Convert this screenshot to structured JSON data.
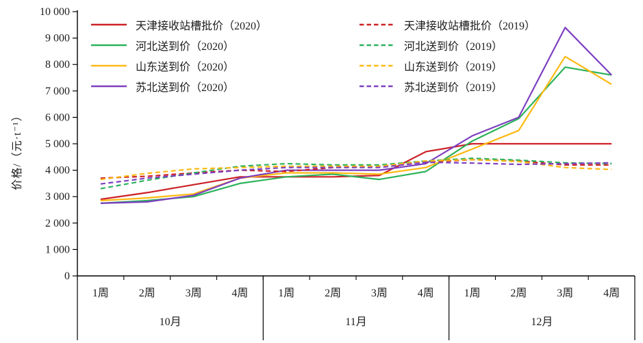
{
  "chart_data": {
    "type": "line",
    "title": "",
    "ylabel": "价格/（元·t⁻¹）",
    "ylim": [
      0,
      10000
    ],
    "ytick_step": 1000,
    "ytick_labels": [
      "0",
      "1 000",
      "2 000",
      "3 000",
      "4 000",
      "5 000",
      "6 000",
      "7 000",
      "8 000",
      "9 000",
      "10 000"
    ],
    "months": [
      "10月",
      "11月",
      "12月"
    ],
    "week_labels": [
      "1周",
      "2周",
      "3周",
      "4周"
    ],
    "legend_position": "top-left-two-columns",
    "grid": false,
    "series": [
      {
        "label": "天津接收站槽批价（2020）",
        "year": "2020",
        "color": "#cc2127",
        "dash": false,
        "values": [
          2900,
          3150,
          3450,
          3750,
          3750,
          3750,
          3800,
          4700,
          5000,
          5000,
          5000,
          5000
        ]
      },
      {
        "label": "河北送到价（2020）",
        "year": "2020",
        "color": "#2cb15a",
        "dash": false,
        "values": [
          2750,
          2850,
          3000,
          3500,
          3750,
          3850,
          3650,
          3950,
          5100,
          5950,
          7900,
          7600
        ]
      },
      {
        "label": "山东送到价（2020）",
        "year": "2020",
        "color": "#fdb913",
        "dash": false,
        "values": [
          2850,
          2950,
          3100,
          3700,
          3900,
          3900,
          3850,
          4100,
          4800,
          5500,
          8300,
          7250
        ]
      },
      {
        "label": "苏北送到价（2020）",
        "year": "2020",
        "color": "#7d3fc0",
        "dash": false,
        "values": [
          2750,
          2800,
          3050,
          3700,
          4000,
          4000,
          4000,
          4250,
          5300,
          6000,
          9400,
          7600
        ]
      },
      {
        "label": "天津接收站槽批价（2019）",
        "year": "2019",
        "color": "#cc2127",
        "dash": true,
        "values": [
          3700,
          3770,
          3900,
          4000,
          3950,
          4100,
          4150,
          4300,
          4400,
          4350,
          4200,
          4200
        ]
      },
      {
        "label": "河北送到价（2019）",
        "year": "2019",
        "color": "#2cb15a",
        "dash": true,
        "values": [
          3300,
          3620,
          3900,
          4150,
          4250,
          4200,
          4200,
          4350,
          4450,
          4380,
          4280,
          4250
        ]
      },
      {
        "label": "山东送到价（2019）",
        "year": "2019",
        "color": "#fdb913",
        "dash": true,
        "values": [
          3650,
          3880,
          4050,
          4100,
          4150,
          4150,
          4150,
          4350,
          4400,
          4330,
          4100,
          4025
        ]
      },
      {
        "label": "苏北送到价（2019）",
        "year": "2019",
        "color": "#7d3fc0",
        "dash": true,
        "values": [
          3480,
          3700,
          3850,
          4000,
          4100,
          4100,
          4100,
          4300,
          4270,
          4220,
          4250,
          4280
        ]
      }
    ]
  }
}
